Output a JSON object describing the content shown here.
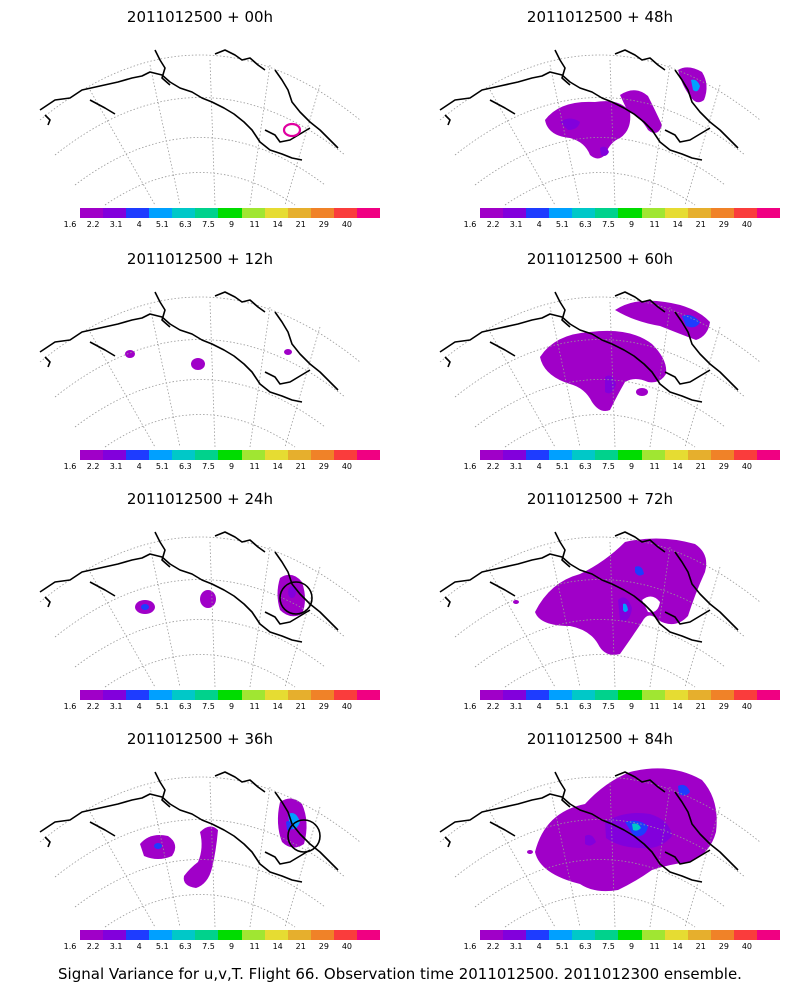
{
  "caption": "Signal Variance for u,v,T. Flight 66. Observation time 2011012500. 2011012300 ensemble.",
  "colorbar": {
    "colors": [
      "#a000c8",
      "#8200dc",
      "#1e3cff",
      "#00a0ff",
      "#00c8c8",
      "#00d28c",
      "#00dc00",
      "#a0e632",
      "#e6dc32",
      "#e6af2d",
      "#f08228",
      "#fa3c3c",
      "#f00082"
    ],
    "tick_labels": [
      "1.6",
      "2.2",
      "3.1",
      "4",
      "5.1",
      "6.3",
      "7.5",
      "9",
      "11",
      "14",
      "21",
      "29",
      "40"
    ]
  },
  "panels": [
    {
      "title": "2011012500 + 00h"
    },
    {
      "title": "2011012500 + 48h"
    },
    {
      "title": "2011012500 + 12h"
    },
    {
      "title": "2011012500 + 60h"
    },
    {
      "title": "2011012500 + 24h"
    },
    {
      "title": "2011012500 + 72h"
    },
    {
      "title": "2011012500 + 36h"
    },
    {
      "title": "2011012500 + 84h"
    }
  ]
}
